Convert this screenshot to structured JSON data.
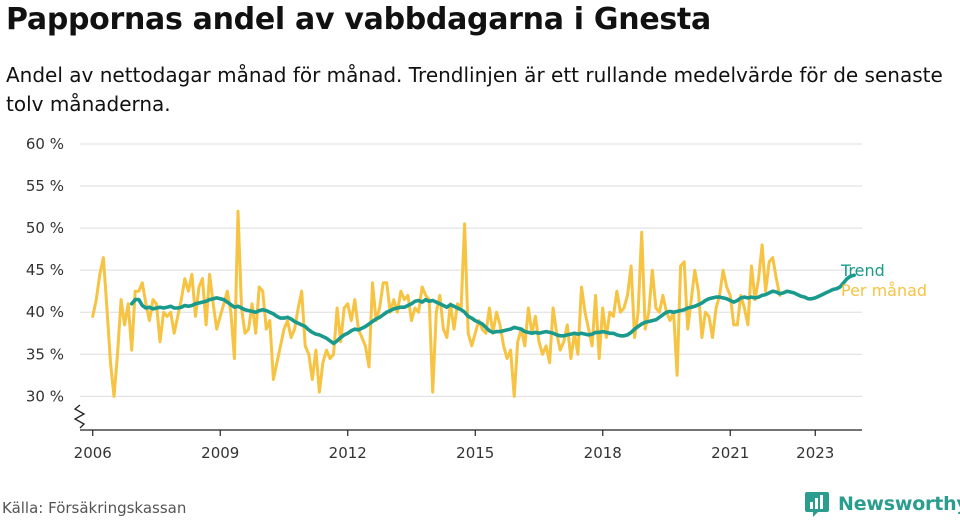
{
  "title": "Pappornas andel av vabbdagarna i Gnesta",
  "subtitle": "Andel av nettodagar månad för månad. Trendlinjen är ett rullande medelvärde för de senaste tolv månaderna.",
  "source": "Källa: Försäkringskassan",
  "brand": {
    "name": "Newsworthy",
    "icon": "newsworthy-logo-icon"
  },
  "colors": {
    "trend": "#1a9a8c",
    "monthly": "#f6c342",
    "grid": "#dddddd",
    "axis": "#222222"
  },
  "chart_data": {
    "type": "line",
    "y_ticks": [
      "30 %",
      "35 %",
      "40 %",
      "45 %",
      "50 %",
      "55 %",
      "60 %"
    ],
    "x_ticks": [
      "2006",
      "2009",
      "2012",
      "2015",
      "2018",
      "2021",
      "2023"
    ],
    "x_tick_values": [
      2006,
      2009,
      2012,
      2015,
      2018,
      2021,
      2023
    ],
    "ylim": [
      26,
      60
    ],
    "xlim": [
      2005.7,
      2024.1
    ],
    "y_axis_break": true,
    "grid": "horizontal",
    "legend_position": "right, at end of lines",
    "series": [
      {
        "name": "Per månad",
        "start": 2006.0,
        "step": 0.08333,
        "values": [
          39.5,
          41.5,
          44.5,
          46.5,
          40.5,
          34,
          30,
          35,
          41.5,
          38.5,
          41,
          35.5,
          42.5,
          42.5,
          43.5,
          41,
          39,
          41.5,
          41,
          36.5,
          40,
          39.5,
          40,
          37.5,
          39.5,
          41.5,
          44,
          42.5,
          44.5,
          39.5,
          43,
          44,
          38.5,
          44.5,
          41,
          38,
          39.5,
          41,
          42.5,
          40,
          34.5,
          52,
          40.5,
          37.5,
          38,
          41,
          37.5,
          43,
          42.5,
          38,
          39,
          32,
          34,
          36,
          38,
          39,
          37,
          38,
          40.5,
          42.5,
          36,
          35,
          32,
          35.5,
          30.5,
          34,
          35.5,
          34.5,
          35,
          40.5,
          36.5,
          40.5,
          41,
          39,
          41.5,
          38,
          37,
          36,
          33.5,
          43.5,
          39,
          40.5,
          43.5,
          43.5,
          40,
          41.5,
          40,
          42.5,
          41.5,
          42,
          39,
          40.5,
          40,
          43,
          42,
          41.5,
          30.5,
          40,
          42,
          38,
          37,
          41,
          38,
          41,
          40.5,
          50.5,
          37.5,
          36,
          37.5,
          39,
          38,
          37.5,
          40.5,
          37.5,
          40,
          38.5,
          36,
          34.5,
          35.5,
          30,
          36.5,
          38,
          36,
          40.5,
          37.5,
          39.5,
          36.5,
          35,
          36,
          34,
          40.5,
          37.5,
          35.5,
          36.5,
          38.5,
          34.5,
          37.5,
          35,
          43,
          40,
          38,
          36,
          42,
          34.5,
          40.5,
          37,
          40,
          39.5,
          42.5,
          40,
          40.5,
          42,
          45.5,
          37,
          40,
          49.5,
          38,
          40,
          45,
          40.5,
          40,
          42,
          40,
          39,
          40,
          32.5,
          45.5,
          46,
          38,
          41.5,
          45,
          42.5,
          37,
          40,
          39.5,
          37,
          40.5,
          42,
          45,
          43,
          42,
          38.5,
          38.5,
          42,
          40.5,
          38.5,
          45.5,
          41.5,
          44,
          48,
          42.5,
          46,
          46.5,
          44,
          42
        ]
      },
      {
        "name": "Trend",
        "start": 2006.9167,
        "step": 0.08333,
        "values": [
          41,
          41.5,
          41.5,
          40.8,
          40.5,
          40.6,
          40.4,
          40.5,
          40.6,
          40.5,
          40.6,
          40.7,
          40.5,
          40.5,
          40.6,
          40.8,
          40.7,
          40.8,
          41,
          41.1,
          41.2,
          41.3,
          41.5,
          41.6,
          41.7,
          41.6,
          41.5,
          41.2,
          40.9,
          40.6,
          40.7,
          40.5,
          40.3,
          40.2,
          40.1,
          40,
          40.2,
          40.3,
          40.2,
          40,
          39.8,
          39.5,
          39.3,
          39.3,
          39.4,
          39.2,
          38.9,
          38.7,
          38.5,
          38.3,
          37.9,
          37.6,
          37.4,
          37.3,
          37.1,
          36.9,
          36.6,
          36.3,
          36.6,
          37,
          37.3,
          37.5,
          37.8,
          38,
          37.9,
          38.1,
          38.3,
          38.6,
          38.9,
          39.2,
          39.4,
          39.7,
          40,
          40.2,
          40.4,
          40.5,
          40.6,
          40.6,
          40.8,
          41,
          41.3,
          41.4,
          41.2,
          41.5,
          41.3,
          41.4,
          41.2,
          41,
          40.8,
          40.6,
          40.9,
          40.7,
          40.5,
          40.3,
          40,
          39.5,
          39.3,
          39,
          38.8,
          38.6,
          38.2,
          37.8,
          37.6,
          37.7,
          37.7,
          37.8,
          37.9,
          38,
          38.2,
          38.1,
          38,
          37.7,
          37.6,
          37.5,
          37.6,
          37.5,
          37.6,
          37.7,
          37.6,
          37.5,
          37.3,
          37.2,
          37.2,
          37.3,
          37.4,
          37.5,
          37.4,
          37.5,
          37.4,
          37.3,
          37.4,
          37.6,
          37.6,
          37.7,
          37.6,
          37.5,
          37.5,
          37.3,
          37.2,
          37.2,
          37.3,
          37.6,
          38,
          38.3,
          38.6,
          38.8,
          38.9,
          39,
          39.1,
          39.4,
          39.7,
          40,
          40.1,
          40,
          40.1,
          40.2,
          40.3,
          40.5,
          40.6,
          40.7,
          40.9,
          41.1,
          41.4,
          41.6,
          41.7,
          41.8,
          41.8,
          41.7,
          41.6,
          41.4,
          41.2,
          41.4,
          41.7,
          41.8,
          41.7,
          41.8,
          41.7,
          41.8,
          42,
          42.1,
          42.3,
          42.5,
          42.4,
          42.2,
          42.3,
          42.5,
          42.4,
          42.3,
          42.1,
          41.9,
          41.8,
          41.6,
          41.6,
          41.7,
          41.9,
          42.1,
          42.3,
          42.5,
          42.7,
          42.8,
          43,
          43.5,
          44,
          44.3,
          44.4
        ]
      }
    ],
    "legend": [
      "Trend",
      "Per månad"
    ]
  }
}
